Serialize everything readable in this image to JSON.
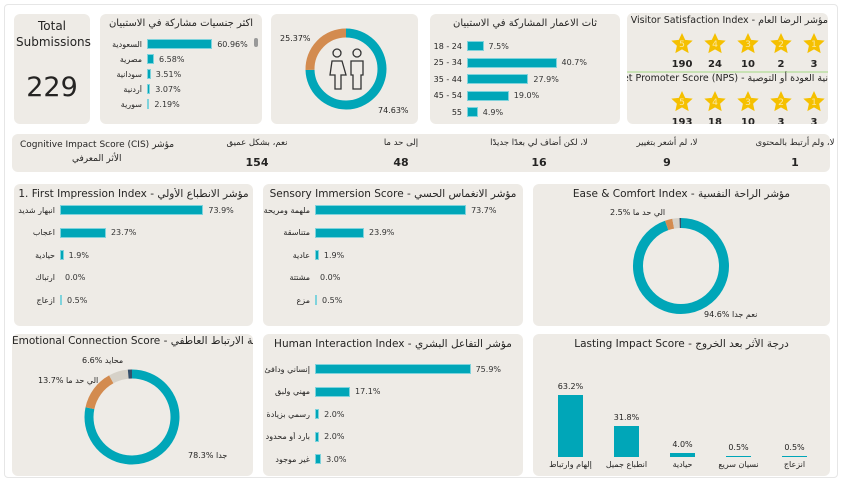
{
  "total": {
    "label": "Total Submissions",
    "value": "229"
  },
  "colors": {
    "teal": "#00a6b8",
    "orange": "#d38b4f",
    "grey": "#d6d1c8",
    "dark": "#35506b",
    "star": "#f5c000"
  },
  "chart_data": [
    {
      "id": "nationality",
      "type": "bar",
      "orientation": "horizontal",
      "title": "اكثر جنسيات مشاركة في الاستبيان",
      "categories": [
        "السعودية",
        "مصرية",
        "سودانية",
        "أردنية",
        "سورية"
      ],
      "values": [
        60.96,
        6.58,
        3.51,
        3.07,
        2.19
      ],
      "labels": [
        "60.96%",
        "6.58%",
        "3.51%",
        "3.07%",
        "2.19%"
      ]
    },
    {
      "id": "gender",
      "type": "pie",
      "donut": true,
      "icon": "female-male-icon",
      "values": [
        74.63,
        25.37
      ],
      "labels": [
        "74.63%",
        "25.37%"
      ],
      "colors": [
        "#00a6b8",
        "#d38b4f"
      ]
    },
    {
      "id": "ages",
      "type": "bar",
      "orientation": "horizontal",
      "title": "ثات الاعمار المشاركة في الاستبيان",
      "categories": [
        "18 - 24",
        "25 - 34",
        "35 - 44",
        "45 - 54",
        "55"
      ],
      "values": [
        7.5,
        40.7,
        27.9,
        19.0,
        4.9
      ],
      "labels": [
        "7.5%",
        "40.7%",
        "27.9%",
        "19.0%",
        "4.9%"
      ]
    },
    {
      "id": "first_impression",
      "type": "bar",
      "orientation": "horizontal",
      "title": "1. First Impression Index - مؤشر الانطباع الأولي",
      "categories": [
        "انبهار شديد",
        "اعجاب",
        "حيادية",
        "ارتباك",
        "ازعاج"
      ],
      "values": [
        73.9,
        23.7,
        1.9,
        0.0,
        0.5
      ],
      "labels": [
        "73.9%",
        "23.7%",
        "1.9%",
        "0.0%",
        "0.5%"
      ]
    },
    {
      "id": "sensory",
      "type": "bar",
      "orientation": "horizontal",
      "title": "Sensory Immersion Score - مؤشر الانغماس الحسي",
      "categories": [
        "ملهمة ومريحة",
        "متناسقة",
        "عادية",
        "مشتتة",
        "مزع"
      ],
      "values": [
        73.7,
        23.9,
        1.9,
        0.0,
        0.5
      ],
      "labels": [
        "73.7%",
        "23.9%",
        "1.9%",
        "0.0%",
        "0.5%"
      ]
    },
    {
      "id": "ease",
      "type": "pie",
      "donut": true,
      "title": "Ease & Comfort Index - مؤشر الراحة النفسية",
      "values": [
        94.6,
        2.5,
        2.4,
        0.5
      ],
      "labels": [
        "94.6% نعم جدا",
        "2.5% الي حد ما",
        "",
        ""
      ],
      "colors": [
        "#00a6b8",
        "#d38b4f",
        "#d6d1c8",
        "#35506b"
      ]
    },
    {
      "id": "emotional",
      "type": "pie",
      "donut": true,
      "title": "Emotional Connection Score - درجة الارتباط العاطفي",
      "values": [
        78.3,
        13.7,
        6.6,
        1.4
      ],
      "labels": [
        "78.3% جدا",
        "13.7% الي حد ما",
        "6.6% محايد",
        ""
      ],
      "colors": [
        "#00a6b8",
        "#d38b4f",
        "#d6d1c8",
        "#35506b"
      ]
    },
    {
      "id": "human",
      "type": "bar",
      "orientation": "horizontal",
      "title": "Human Interaction Index - مؤشر التفاعل البشري",
      "categories": [
        "إنساني ودافئ",
        "مهني ولبق",
        "رسمي بزيادة",
        "بارد أو محدود",
        "غير موجود"
      ],
      "values": [
        75.9,
        17.1,
        2.0,
        2.0,
        3.0
      ],
      "labels": [
        "75.9%",
        "17.1%",
        "2.0%",
        "2.0%",
        "3.0%"
      ]
    },
    {
      "id": "lasting",
      "type": "bar",
      "orientation": "vertical",
      "title": "Lasting Impact Score - درجة الأثر بعد الخروج",
      "categories": [
        "إلهام وارتباط",
        "انطباع جميل",
        "حيادية",
        "نسيان سريع",
        "انزعاج"
      ],
      "values": [
        63.2,
        31.8,
        4.0,
        0.5,
        0.5
      ],
      "labels": [
        "63.2%",
        "31.8%",
        "4.0%",
        "0.5%",
        "0.5%"
      ]
    }
  ],
  "satisfaction": {
    "title": "Visitor Satisfaction Index - مؤشر الرضا العام",
    "stars": [
      {
        "n": "5",
        "count": "190"
      },
      {
        "n": "4",
        "count": "24"
      },
      {
        "n": "3",
        "count": "10"
      },
      {
        "n": "2",
        "count": "2"
      },
      {
        "n": "1",
        "count": "3"
      }
    ]
  },
  "nps": {
    "title": "Net Promoter Score (NPS) - نية العودة أو التوصية",
    "stars": [
      {
        "n": "5",
        "count": "193"
      },
      {
        "n": "4",
        "count": "18"
      },
      {
        "n": "3",
        "count": "10"
      },
      {
        "n": "2",
        "count": "3"
      },
      {
        "n": "1",
        "count": "3"
      }
    ]
  },
  "cis": {
    "title_en": "Cognitive Impact Score (CIS) مؤشر",
    "title_ar": "الأثر المعرفي",
    "columns": [
      {
        "label": "نعم، بشكل عميق",
        "value": "154"
      },
      {
        "label": "إلى حد ما",
        "value": "48"
      },
      {
        "label": "لا، لكن أضاف لي بعدًا جديدًا",
        "value": "16"
      },
      {
        "label": "لا، لم أشعر بتغيير",
        "value": "9"
      },
      {
        "label": "لا، ولم أرتبط بالمحتوى",
        "value": "1"
      }
    ]
  }
}
